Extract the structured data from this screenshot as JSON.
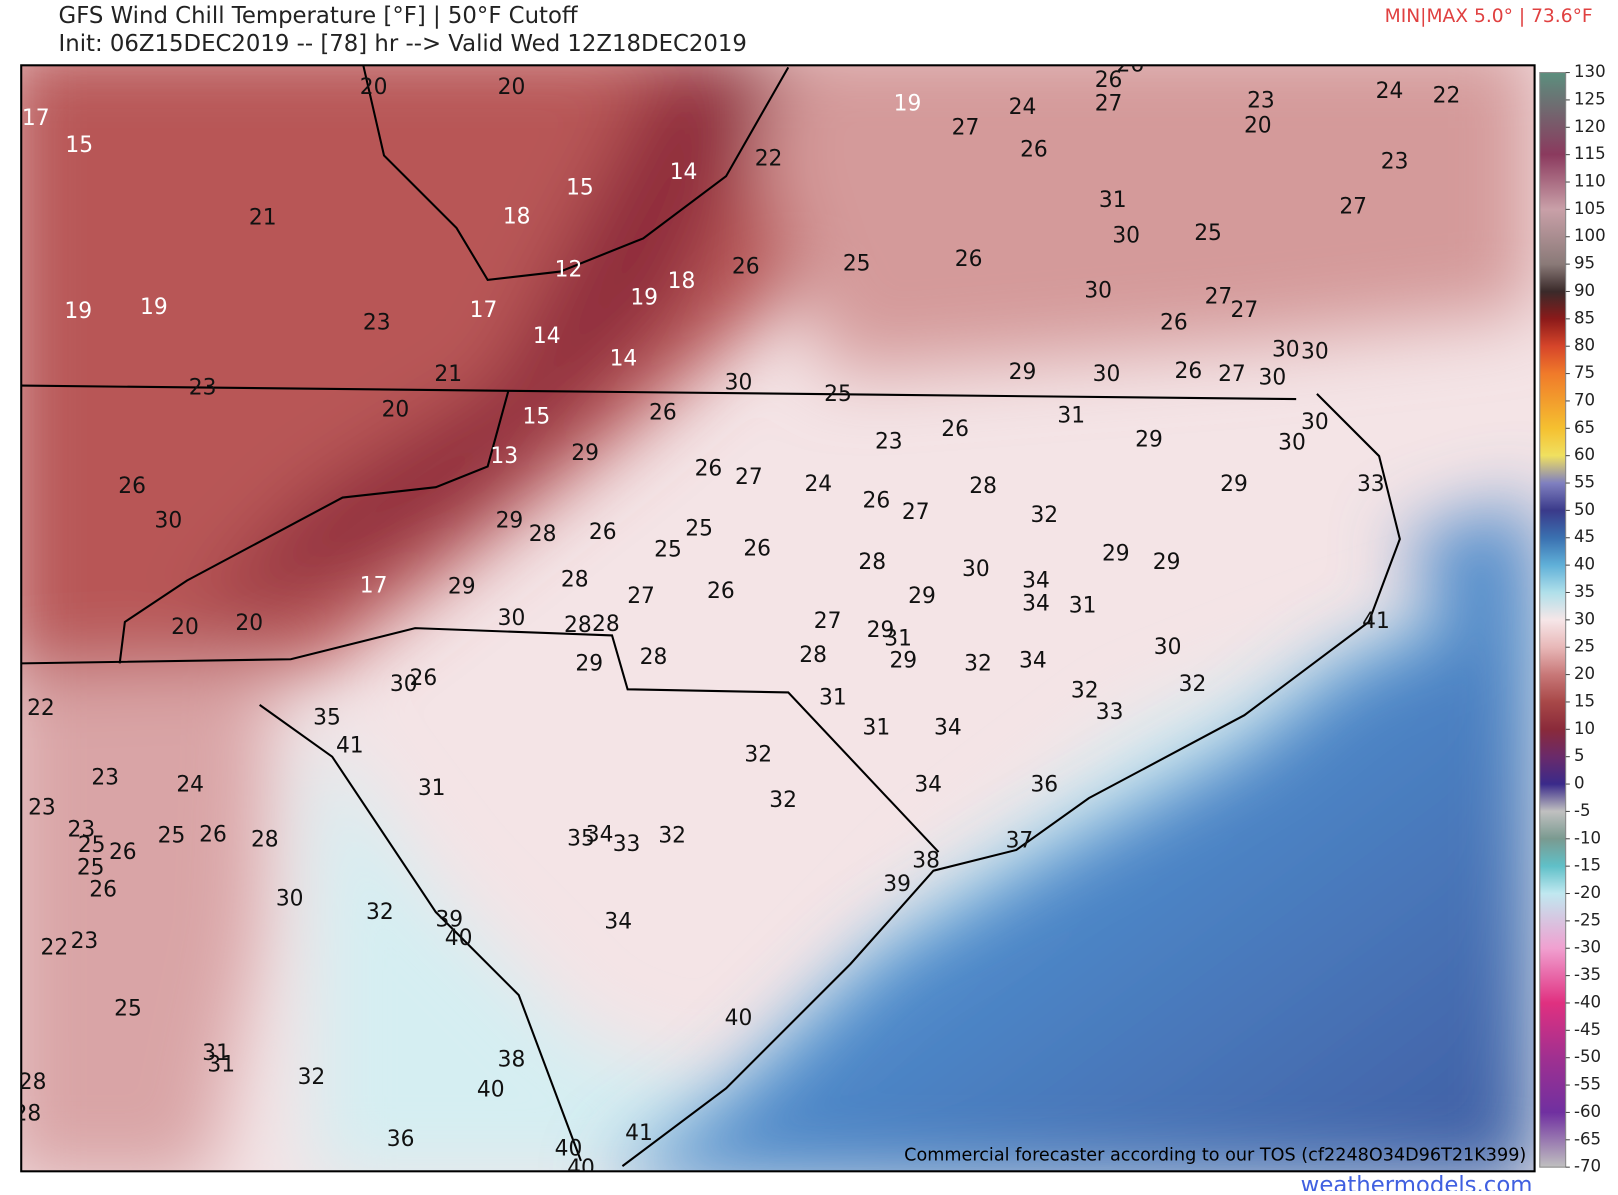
{
  "title": "GFS Wind Chill Temperature [°F] | 50°F Cutoff",
  "subtitle": "Init: 06Z15DEC2019 -- [78] hr --> Valid Wed 12Z18DEC2019",
  "minmax": "MIN|MAX 5.0° | 73.6°F",
  "notice": "Commercial forecaster according to our TOS (cf2248O34D96T21K399)",
  "site": "weathermodels.com",
  "colorbar": {
    "lim": [
      -70,
      130
    ],
    "ticks": [
      130,
      125,
      120,
      115,
      110,
      105,
      100,
      95,
      90,
      85,
      80,
      75,
      70,
      65,
      60,
      55,
      50,
      45,
      40,
      35,
      30,
      25,
      20,
      15,
      10,
      5,
      0,
      -5,
      -10,
      -15,
      -20,
      -25,
      -30,
      -35,
      -40,
      -45,
      -50,
      -55,
      -60,
      -65,
      -70
    ],
    "colormap": [
      [
        130,
        "#5b8f7e"
      ],
      [
        115,
        "#8b3a5e"
      ],
      [
        105,
        "#c9a0a8"
      ],
      [
        95,
        "#8a7a78"
      ],
      [
        90,
        "#3a2a2a"
      ],
      [
        85,
        "#8b1a1a"
      ],
      [
        80,
        "#d6452a"
      ],
      [
        75,
        "#f07a2a"
      ],
      [
        65,
        "#f5c030"
      ],
      [
        60,
        "#f0e060"
      ],
      [
        55,
        "#8080c0"
      ],
      [
        50,
        "#3a3a8a"
      ],
      [
        45,
        "#3a70b0"
      ],
      [
        40,
        "#60b0d8"
      ],
      [
        35,
        "#b0e0ea"
      ],
      [
        30,
        "#f6e6e8"
      ],
      [
        25,
        "#e8b8b8"
      ],
      [
        20,
        "#c87878"
      ],
      [
        15,
        "#a84848"
      ],
      [
        10,
        "#8a2a3a"
      ],
      [
        5,
        "#6a2a6a"
      ],
      [
        0,
        "#3a2a8a"
      ],
      [
        -5,
        "#c0c0c0"
      ],
      [
        -10,
        "#7a9a90"
      ],
      [
        -15,
        "#60c0c8"
      ],
      [
        -20,
        "#c0e8f0"
      ],
      [
        -30,
        "#f0a0d0"
      ],
      [
        -40,
        "#e03080"
      ],
      [
        -50,
        "#a03090"
      ],
      [
        -60,
        "#7030a0"
      ],
      [
        -70,
        "#c0c0c0"
      ]
    ]
  },
  "labels": [
    17,
    15,
    20,
    20,
    21,
    15,
    18,
    14,
    22,
    19,
    24,
    27,
    26,
    26,
    26,
    27,
    31,
    30,
    25,
    23,
    20,
    24,
    22,
    23,
    27,
    12,
    19,
    18,
    26,
    25,
    26,
    30,
    26,
    27,
    27,
    19,
    19,
    23,
    17,
    14,
    14,
    21,
    23,
    20,
    15,
    13,
    29,
    26,
    30,
    25,
    29,
    30,
    26,
    27,
    30,
    30,
    30,
    31,
    29,
    30,
    30,
    29,
    33,
    23,
    26,
    26,
    27,
    24,
    26,
    27,
    28,
    32,
    29,
    29,
    26,
    30,
    29,
    28,
    26,
    25,
    25,
    26,
    28,
    30,
    34,
    34,
    31,
    29,
    27,
    29,
    31,
    29,
    32,
    34,
    30,
    32,
    41,
    32,
    33,
    17,
    29,
    28,
    27,
    26,
    30,
    28,
    28,
    28,
    29,
    28,
    31,
    31,
    34,
    34,
    36,
    37,
    38,
    39,
    20,
    20,
    30,
    26,
    35,
    41,
    22,
    23,
    24,
    23,
    23,
    25,
    26,
    25,
    26,
    25,
    26,
    28,
    31,
    32,
    32,
    35,
    34,
    33,
    32,
    30,
    32,
    39,
    40,
    34,
    22,
    23,
    25,
    40,
    31,
    31,
    32,
    28,
    28,
    38,
    40,
    36,
    40,
    40,
    41
  ]
}
